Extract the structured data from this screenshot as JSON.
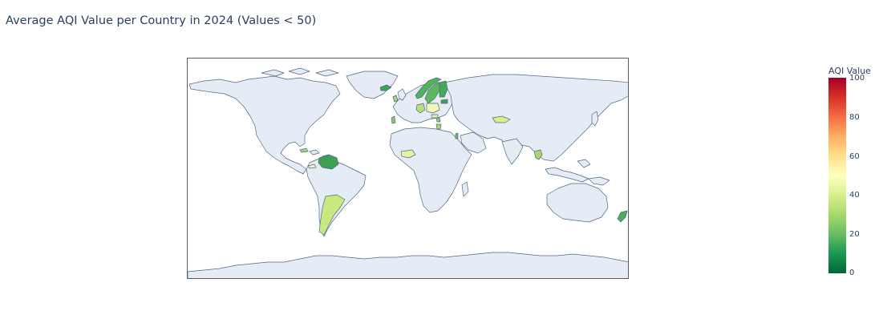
{
  "title": "Average AQI Value per Country in 2024 (Values < 50)",
  "colorbar": {
    "title": "AQI Value",
    "ticks": [
      "100",
      "80",
      "60",
      "40",
      "20",
      "0"
    ],
    "range": [
      0,
      100
    ],
    "colorscale": [
      "#006837",
      "#1a9850",
      "#66bd63",
      "#a6d96a",
      "#d9ef8b",
      "#ffffbf",
      "#fee08b",
      "#fdae61",
      "#f46d43",
      "#d73027",
      "#a50026"
    ]
  },
  "map": {
    "projection": "natural earth",
    "land_color": "#e5ecf6",
    "coast_color": "#506784"
  },
  "highlighted_countries": [
    {
      "name": "Iceland",
      "color": "#3aa357"
    },
    {
      "name": "Norway",
      "color": "#52b35b"
    },
    {
      "name": "Sweden",
      "color": "#5cb85f"
    },
    {
      "name": "Finland",
      "color": "#45a95a"
    },
    {
      "name": "Estonia",
      "color": "#3aa357"
    },
    {
      "name": "Ireland",
      "color": "#a6d96a"
    },
    {
      "name": "Portugal",
      "color": "#8ccb6a"
    },
    {
      "name": "Germany",
      "color": "#b5e07a"
    },
    {
      "name": "Poland",
      "color": "#f2f7b3"
    },
    {
      "name": "Hungary",
      "color": "#e4f3a0"
    },
    {
      "name": "Serbia",
      "color": "#8ccb6a"
    },
    {
      "name": "Greece",
      "color": "#a6d96a"
    },
    {
      "name": "Israel",
      "color": "#66bd63"
    },
    {
      "name": "Uzbekistan",
      "color": "#d9ef8b"
    },
    {
      "name": "Niger",
      "color": "#e4f3a0"
    },
    {
      "name": "Vietnam",
      "color": "#a6d96a"
    },
    {
      "name": "Cuba",
      "color": "#a6d96a"
    },
    {
      "name": "Panama",
      "color": "#f2f7b3"
    },
    {
      "name": "Venezuela",
      "color": "#3f9f55"
    },
    {
      "name": "Argentina",
      "color": "#c9e880"
    },
    {
      "name": "New Zealand",
      "color": "#4caf5b"
    }
  ]
}
